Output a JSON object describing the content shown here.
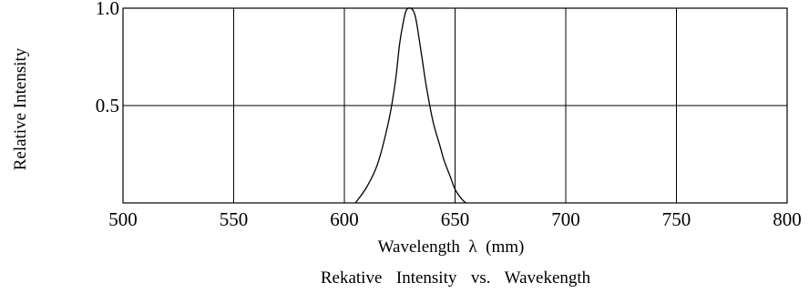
{
  "chart_data": {
    "type": "line",
    "title": "Rekative  Intensity  vs.  Wavekength",
    "xlabel": "Wavelength  λ  (mm)",
    "ylabel": "Relative Intensity",
    "xlim": [
      500,
      800
    ],
    "ylim": [
      0,
      1.0
    ],
    "x_ticks": [
      500,
      550,
      600,
      650,
      700,
      750,
      800
    ],
    "x_tick_labels": [
      "500",
      "550",
      "600",
      "650",
      "700",
      "750",
      "800"
    ],
    "y_ticks": [
      0.5,
      1.0
    ],
    "y_tick_labels": [
      "0.5",
      "1.0"
    ],
    "grid": true,
    "series": [
      {
        "x": [
          605,
          610,
          615,
          620,
          623,
          625,
          627,
          628,
          629,
          630,
          631,
          632,
          633,
          635,
          637,
          640,
          643,
          645,
          648,
          650,
          653,
          655
        ],
        "y": [
          0.0,
          0.08,
          0.2,
          0.42,
          0.62,
          0.82,
          0.95,
          0.99,
          1.0,
          1.0,
          0.99,
          0.96,
          0.9,
          0.75,
          0.6,
          0.42,
          0.3,
          0.22,
          0.13,
          0.07,
          0.02,
          0.0
        ]
      }
    ]
  }
}
